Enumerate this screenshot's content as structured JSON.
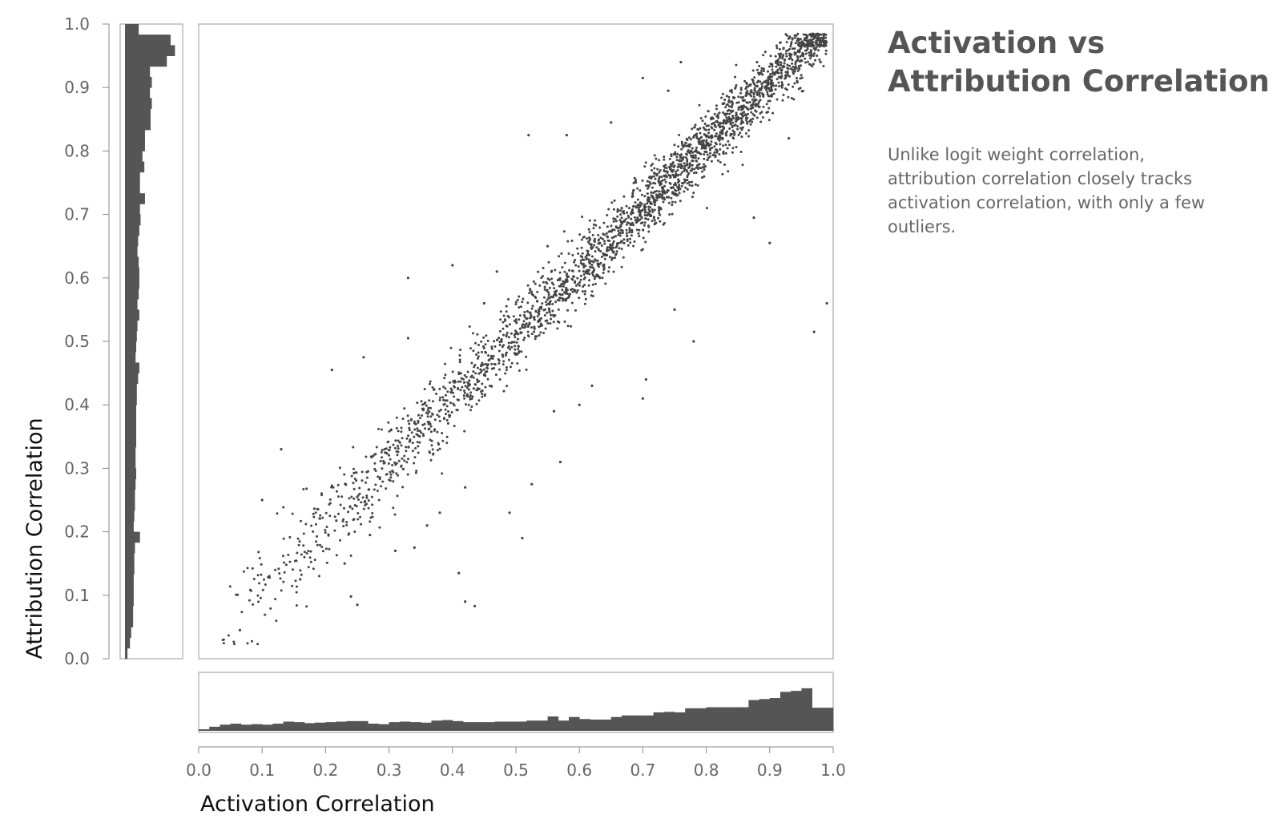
{
  "title": "Activation vs Attribution Correlation",
  "description": "Unlike logit weight correlation, attribution correlation closely tracks activation correlation, with only a few outliers.",
  "colors": {
    "points": "#444444",
    "histogram": "#555555",
    "frame": "#aaaaaa"
  },
  "chart_data": {
    "type": "scatter",
    "xlabel": "Activation Correlation",
    "ylabel": "Attribution Correlation",
    "xlim": [
      0,
      1
    ],
    "ylim": [
      0,
      1
    ],
    "x_ticks": [
      "0.0",
      "0.1",
      "0.2",
      "0.3",
      "0.4",
      "0.5",
      "0.6",
      "0.7",
      "0.8",
      "0.9",
      "1.0"
    ],
    "y_ticks": [
      "0.0",
      "0.1",
      "0.2",
      "0.3",
      "0.4",
      "0.5",
      "0.6",
      "0.7",
      "0.8",
      "0.9",
      "1.0"
    ],
    "grid": false,
    "marginal_histograms": true,
    "histogram_bin_width": 0.02,
    "x_histogram_relative": [
      0.03,
      0.08,
      0.12,
      0.14,
      0.12,
      0.13,
      0.12,
      0.14,
      0.18,
      0.17,
      0.15,
      0.16,
      0.17,
      0.18,
      0.19,
      0.19,
      0.14,
      0.13,
      0.17,
      0.18,
      0.17,
      0.16,
      0.2,
      0.21,
      0.19,
      0.17,
      0.17,
      0.17,
      0.18,
      0.18,
      0.18,
      0.2,
      0.2,
      0.28,
      0.2,
      0.27,
      0.23,
      0.22,
      0.22,
      0.27,
      0.3,
      0.3,
      0.3,
      0.36,
      0.37,
      0.36,
      0.44,
      0.44,
      0.46,
      0.46,
      0.46,
      0.46,
      0.6,
      0.62,
      0.64,
      0.76,
      0.78,
      0.83,
      0.45,
      0.45
    ],
    "y_histogram_relative": [
      0.04,
      0.08,
      0.1,
      0.13,
      0.13,
      0.14,
      0.14,
      0.14,
      0.15,
      0.15,
      0.16,
      0.24,
      0.14,
      0.15,
      0.16,
      0.16,
      0.17,
      0.18,
      0.17,
      0.17,
      0.18,
      0.18,
      0.18,
      0.18,
      0.19,
      0.19,
      0.21,
      0.23,
      0.17,
      0.18,
      0.19,
      0.2,
      0.23,
      0.2,
      0.22,
      0.23,
      0.23,
      0.22,
      0.2,
      0.21,
      0.23,
      0.25,
      0.24,
      0.32,
      0.24,
      0.24,
      0.31,
      0.28,
      0.32,
      0.32,
      0.41,
      0.41,
      0.43,
      0.4,
      0.43,
      0.4,
      0.67,
      0.8,
      0.73,
      0.22
    ],
    "outliers": [
      {
        "x": 0.065,
        "y": 0.045
      },
      {
        "x": 0.25,
        "y": 0.085
      },
      {
        "x": 0.42,
        "y": 0.09
      },
      {
        "x": 0.435,
        "y": 0.083
      },
      {
        "x": 0.41,
        "y": 0.135
      },
      {
        "x": 0.24,
        "y": 0.098
      },
      {
        "x": 0.51,
        "y": 0.19
      },
      {
        "x": 0.31,
        "y": 0.17
      },
      {
        "x": 0.34,
        "y": 0.175
      },
      {
        "x": 0.49,
        "y": 0.23
      },
      {
        "x": 0.57,
        "y": 0.31
      },
      {
        "x": 0.525,
        "y": 0.275
      },
      {
        "x": 0.7,
        "y": 0.41
      },
      {
        "x": 0.705,
        "y": 0.44
      },
      {
        "x": 0.97,
        "y": 0.515
      },
      {
        "x": 0.99,
        "y": 0.56
      },
      {
        "x": 0.9,
        "y": 0.655
      },
      {
        "x": 0.875,
        "y": 0.695
      },
      {
        "x": 0.52,
        "y": 0.825
      },
      {
        "x": 0.58,
        "y": 0.825
      },
      {
        "x": 0.65,
        "y": 0.845
      },
      {
        "x": 0.7,
        "y": 0.915
      },
      {
        "x": 0.76,
        "y": 0.94
      },
      {
        "x": 0.74,
        "y": 0.895
      },
      {
        "x": 0.33,
        "y": 0.505
      },
      {
        "x": 0.21,
        "y": 0.455
      },
      {
        "x": 0.26,
        "y": 0.475
      },
      {
        "x": 0.13,
        "y": 0.33
      },
      {
        "x": 0.1,
        "y": 0.25
      },
      {
        "x": 0.33,
        "y": 0.6
      },
      {
        "x": 0.4,
        "y": 0.62
      },
      {
        "x": 0.78,
        "y": 0.5
      },
      {
        "x": 0.75,
        "y": 0.55
      },
      {
        "x": 0.45,
        "y": 0.56
      },
      {
        "x": 0.55,
        "y": 0.65
      },
      {
        "x": 0.47,
        "y": 0.61
      },
      {
        "x": 0.23,
        "y": 0.15
      },
      {
        "x": 0.27,
        "y": 0.195
      },
      {
        "x": 0.16,
        "y": 0.125
      },
      {
        "x": 0.93,
        "y": 0.82
      },
      {
        "x": 0.98,
        "y": 0.94
      },
      {
        "x": 0.88,
        "y": 0.94
      },
      {
        "x": 0.62,
        "y": 0.43
      },
      {
        "x": 0.6,
        "y": 0.4
      },
      {
        "x": 0.56,
        "y": 0.39
      },
      {
        "x": 0.36,
        "y": 0.21
      },
      {
        "x": 0.38,
        "y": 0.23
      },
      {
        "x": 0.42,
        "y": 0.27
      }
    ],
    "main_band": {
      "point_count": 2600,
      "trend": "y ≈ x",
      "x_range": [
        0.03,
        0.99
      ],
      "spread": 0.035
    }
  }
}
